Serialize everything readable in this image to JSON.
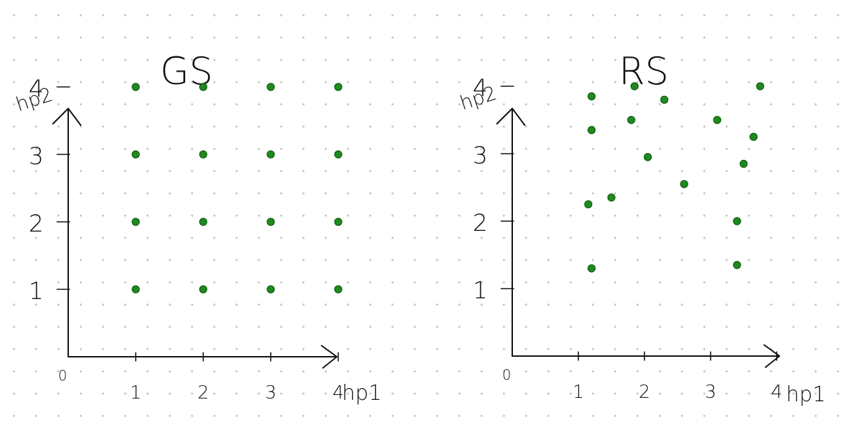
{
  "chart_data": [
    {
      "type": "scatter",
      "title": "GS",
      "xlabel": "hp1",
      "ylabel": "hp2",
      "origin_label": "0",
      "xlim": [
        0,
        4.3
      ],
      "ylim": [
        0,
        4.3
      ],
      "x_ticks": [
        "1",
        "2",
        "3",
        "4"
      ],
      "y_ticks": [
        "1",
        "2",
        "3",
        "4"
      ],
      "grid": false,
      "point_color": "#1f8a1f",
      "points": [
        {
          "x": 1,
          "y": 1
        },
        {
          "x": 2,
          "y": 1
        },
        {
          "x": 3,
          "y": 1
        },
        {
          "x": 4,
          "y": 1
        },
        {
          "x": 1,
          "y": 2
        },
        {
          "x": 2,
          "y": 2
        },
        {
          "x": 3,
          "y": 2
        },
        {
          "x": 4,
          "y": 2
        },
        {
          "x": 1,
          "y": 3
        },
        {
          "x": 2,
          "y": 3
        },
        {
          "x": 3,
          "y": 3
        },
        {
          "x": 4,
          "y": 3
        },
        {
          "x": 1,
          "y": 4
        },
        {
          "x": 2,
          "y": 4
        },
        {
          "x": 3,
          "y": 4
        },
        {
          "x": 4,
          "y": 4
        }
      ]
    },
    {
      "type": "scatter",
      "title": "RS",
      "xlabel": "hp1",
      "ylabel": "hp2",
      "origin_label": "0",
      "xlim": [
        0,
        4.3
      ],
      "ylim": [
        0,
        4.3
      ],
      "x_ticks": [
        "1",
        "2",
        "3",
        "4"
      ],
      "y_ticks": [
        "1",
        "2",
        "3",
        "4"
      ],
      "grid": false,
      "point_color": "#1f8a1f",
      "points": [
        {
          "x": 1.2,
          "y": 3.85
        },
        {
          "x": 1.85,
          "y": 4.0
        },
        {
          "x": 2.3,
          "y": 3.8
        },
        {
          "x": 3.75,
          "y": 4.0
        },
        {
          "x": 1.8,
          "y": 3.5
        },
        {
          "x": 1.2,
          "y": 3.35
        },
        {
          "x": 3.1,
          "y": 3.5
        },
        {
          "x": 3.65,
          "y": 3.25
        },
        {
          "x": 2.05,
          "y": 2.95
        },
        {
          "x": 3.5,
          "y": 2.85
        },
        {
          "x": 2.6,
          "y": 2.55
        },
        {
          "x": 1.5,
          "y": 2.35
        },
        {
          "x": 1.15,
          "y": 2.25
        },
        {
          "x": 3.4,
          "y": 2.0
        },
        {
          "x": 1.2,
          "y": 1.3
        },
        {
          "x": 3.4,
          "y": 1.35
        }
      ]
    }
  ]
}
